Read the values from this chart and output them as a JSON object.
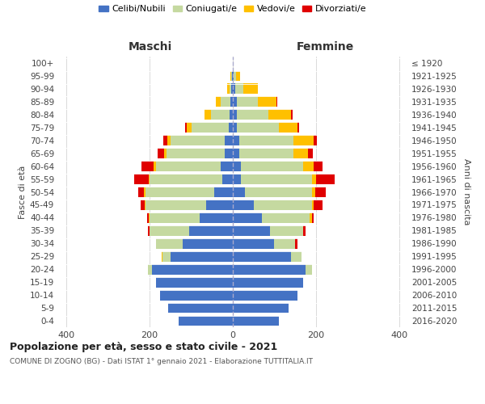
{
  "age_groups": [
    "0-4",
    "5-9",
    "10-14",
    "15-19",
    "20-24",
    "25-29",
    "30-34",
    "35-39",
    "40-44",
    "45-49",
    "50-54",
    "55-59",
    "60-64",
    "65-69",
    "70-74",
    "75-79",
    "80-84",
    "85-89",
    "90-94",
    "95-99",
    "100+"
  ],
  "birth_years": [
    "2016-2020",
    "2011-2015",
    "2006-2010",
    "2001-2005",
    "1996-2000",
    "1991-1995",
    "1986-1990",
    "1981-1985",
    "1976-1980",
    "1971-1975",
    "1966-1970",
    "1961-1965",
    "1956-1960",
    "1951-1955",
    "1946-1950",
    "1941-1945",
    "1936-1940",
    "1931-1935",
    "1926-1930",
    "1921-1925",
    "≤ 1920"
  ],
  "colors": {
    "celibi": "#4472c4",
    "coniugati": "#c5d9a0",
    "vedovi": "#ffc000",
    "divorziati": "#e00000"
  },
  "maschi": {
    "celibi": [
      130,
      155,
      175,
      185,
      195,
      150,
      120,
      105,
      80,
      65,
      45,
      25,
      30,
      20,
      20,
      10,
      8,
      5,
      3,
      2,
      0
    ],
    "coniugati": [
      0,
      0,
      0,
      0,
      10,
      20,
      65,
      95,
      120,
      145,
      165,
      175,
      155,
      140,
      130,
      90,
      45,
      25,
      5,
      2,
      0
    ],
    "vedovi": [
      0,
      0,
      0,
      0,
      0,
      2,
      0,
      0,
      2,
      2,
      3,
      3,
      5,
      5,
      8,
      10,
      15,
      10,
      5,
      2,
      0
    ],
    "divorziati": [
      0,
      0,
      0,
      0,
      0,
      0,
      0,
      5,
      5,
      10,
      15,
      35,
      30,
      15,
      10,
      5,
      0,
      0,
      0,
      0,
      0
    ]
  },
  "femmine": {
    "celibi": [
      110,
      135,
      155,
      170,
      175,
      140,
      100,
      90,
      70,
      50,
      30,
      20,
      20,
      15,
      15,
      10,
      10,
      10,
      5,
      2,
      0
    ],
    "coniugati": [
      0,
      0,
      0,
      0,
      15,
      25,
      50,
      80,
      115,
      140,
      160,
      170,
      150,
      130,
      130,
      100,
      75,
      50,
      20,
      5,
      0
    ],
    "vedovi": [
      0,
      0,
      0,
      0,
      0,
      0,
      0,
      0,
      5,
      5,
      8,
      10,
      25,
      35,
      50,
      45,
      55,
      45,
      35,
      10,
      0
    ],
    "divorziati": [
      0,
      0,
      0,
      0,
      0,
      0,
      5,
      5,
      5,
      20,
      25,
      45,
      20,
      12,
      8,
      5,
      3,
      2,
      0,
      0,
      0
    ]
  },
  "xlim": 420,
  "title": "Popolazione per età, sesso e stato civile - 2021",
  "subtitle": "COMUNE DI ZOGNO (BG) - Dati ISTAT 1° gennaio 2021 - Elaborazione TUTTITALIA.IT",
  "xlabel_left": "Maschi",
  "xlabel_right": "Femmine",
  "ylabel_left": "Fasce di età",
  "ylabel_right": "Anni di nascita",
  "legend_labels": [
    "Celibi/Nubili",
    "Coniugati/e",
    "Vedovi/e",
    "Divorziati/e"
  ],
  "bg_color": "#ffffff",
  "grid_color": "#cccccc"
}
